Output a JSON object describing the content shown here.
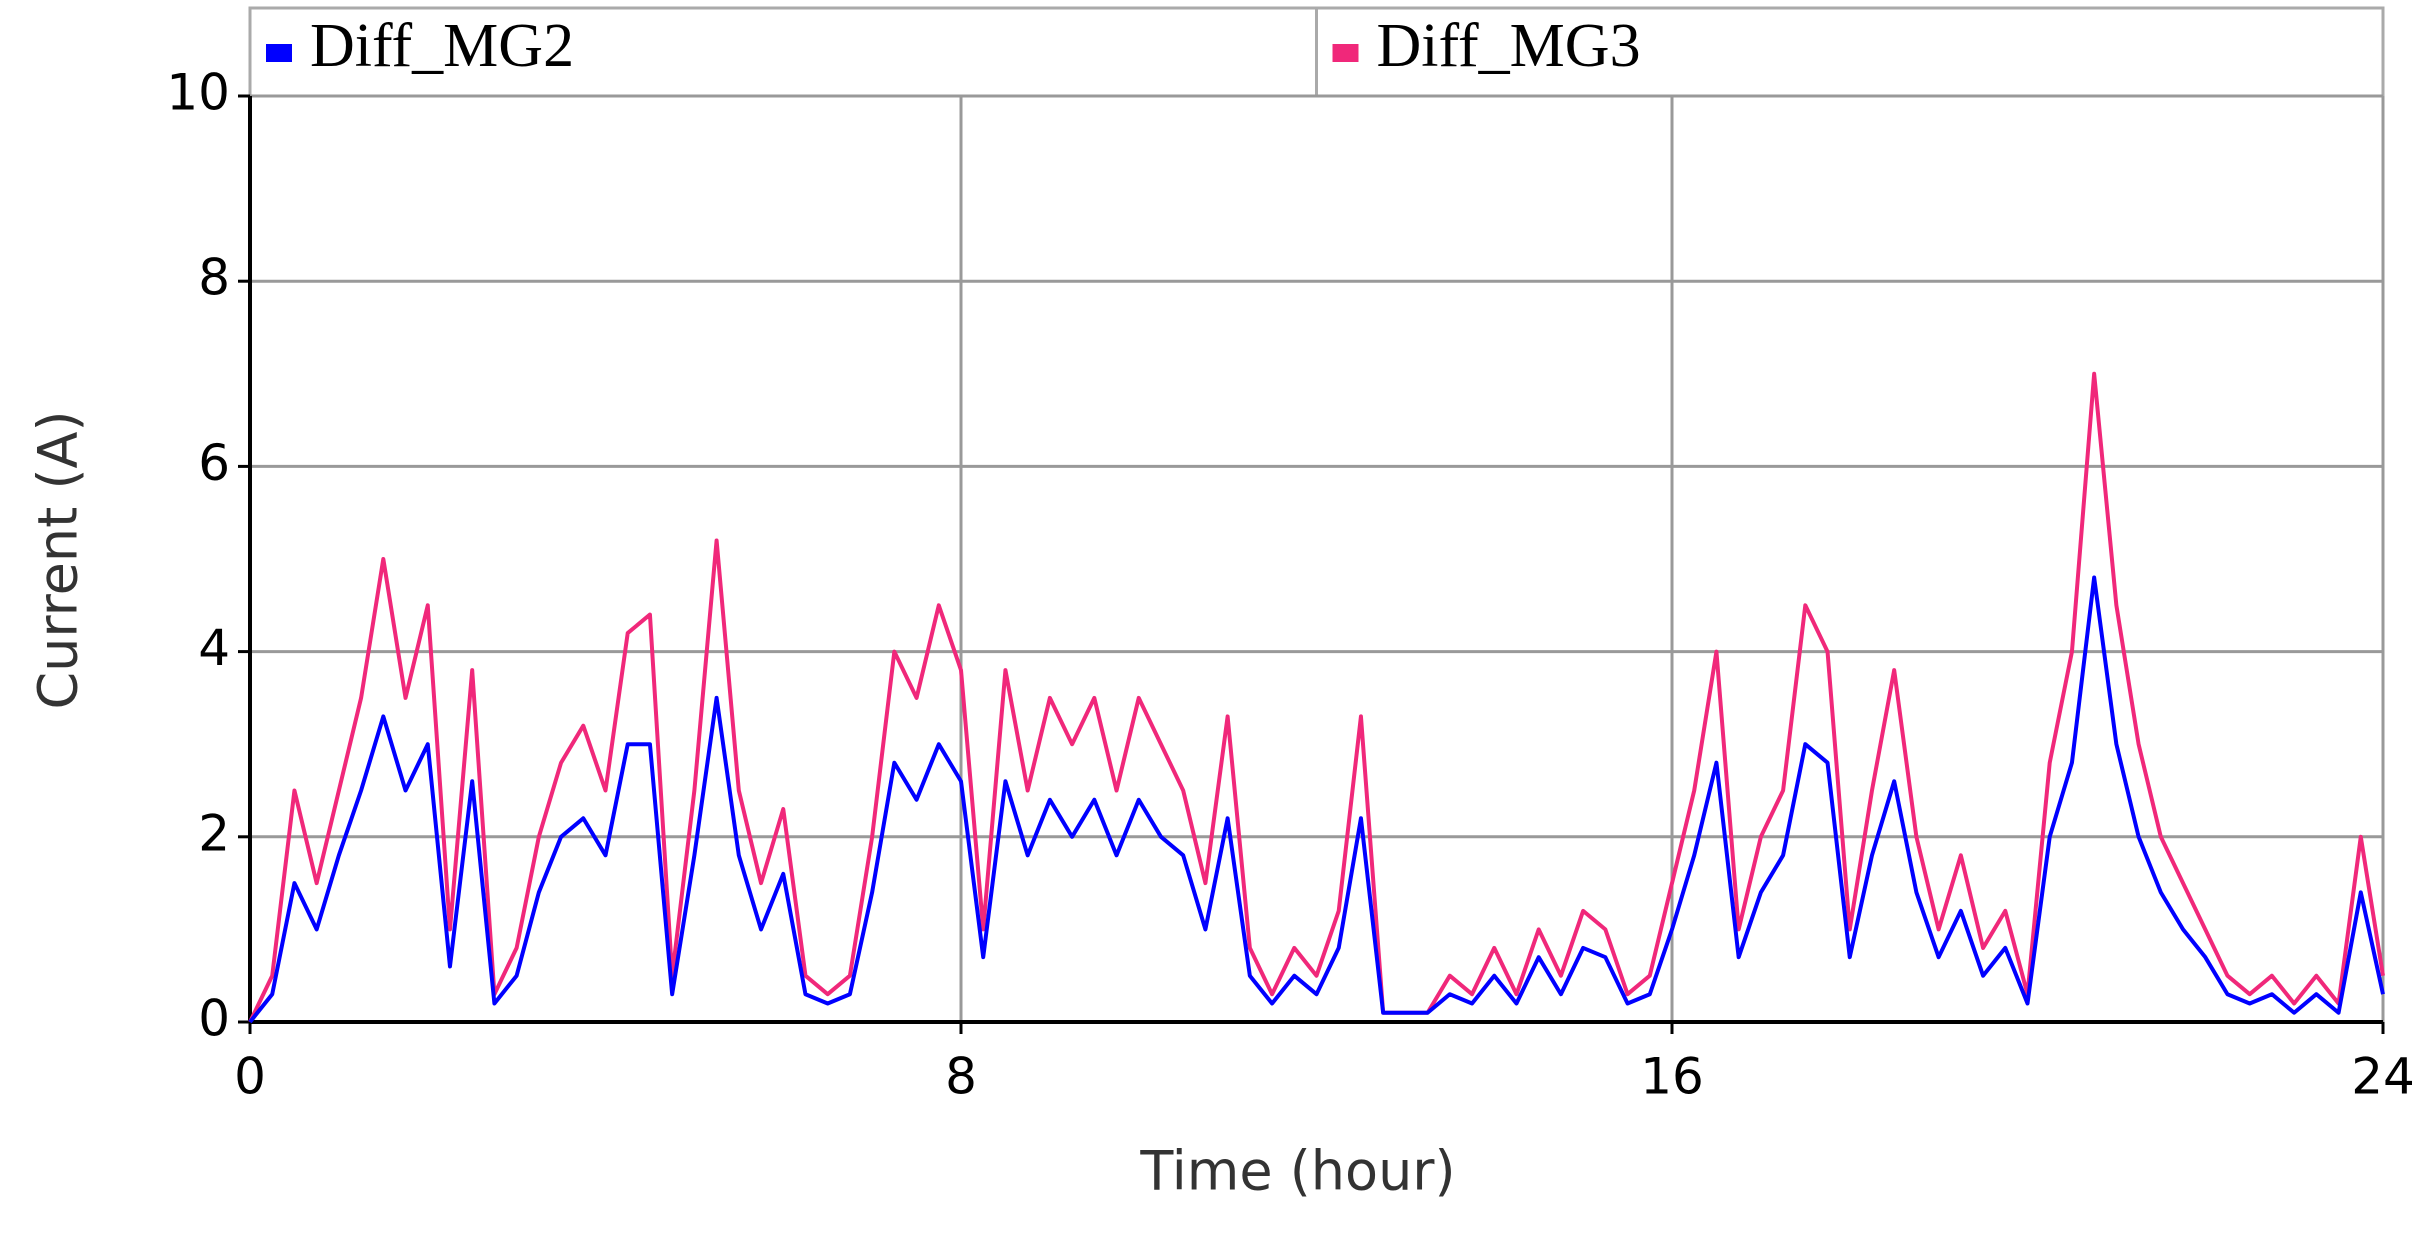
{
  "chart_data": {
    "type": "line",
    "xlabel": "Time (hour)",
    "ylabel": "Current (A)",
    "x": [
      0,
      0.25,
      0.5,
      0.75,
      1,
      1.25,
      1.5,
      1.75,
      2,
      2.25,
      2.5,
      2.75,
      3,
      3.25,
      3.5,
      3.75,
      4,
      4.25,
      4.5,
      4.75,
      5,
      5.25,
      5.5,
      5.75,
      6,
      6.25,
      6.5,
      6.75,
      7,
      7.25,
      7.5,
      7.75,
      8,
      8.25,
      8.5,
      8.75,
      9,
      9.25,
      9.5,
      9.75,
      10,
      10.25,
      10.5,
      10.75,
      11,
      11.25,
      11.5,
      11.75,
      12,
      12.25,
      12.5,
      12.75,
      13,
      13.25,
      13.5,
      13.75,
      14,
      14.25,
      14.5,
      14.75,
      15,
      15.25,
      15.5,
      15.75,
      16,
      16.25,
      16.5,
      16.75,
      17,
      17.25,
      17.5,
      17.75,
      18,
      18.25,
      18.5,
      18.75,
      19,
      19.25,
      19.5,
      19.75,
      20,
      20.25,
      20.5,
      20.75,
      21,
      21.25,
      21.5,
      21.75,
      22,
      22.25,
      22.5,
      22.75,
      23,
      23.25,
      23.5,
      23.75,
      24
    ],
    "series": [
      {
        "name": "Diff_MG2",
        "color": "#0000ff",
        "values": [
          0,
          0.3,
          1.5,
          1.0,
          1.8,
          2.5,
          3.3,
          2.5,
          3.0,
          0.6,
          2.6,
          0.2,
          0.5,
          1.4,
          2.0,
          2.2,
          1.8,
          3.0,
          3.0,
          0.3,
          1.8,
          3.5,
          1.8,
          1.0,
          1.6,
          0.3,
          0.2,
          0.3,
          1.4,
          2.8,
          2.4,
          3.0,
          2.6,
          0.7,
          2.6,
          1.8,
          2.4,
          2.0,
          2.4,
          1.8,
          2.4,
          2.0,
          1.8,
          1.0,
          2.2,
          0.5,
          0.2,
          0.5,
          0.3,
          0.8,
          2.2,
          0.1,
          0.1,
          0.1,
          0.3,
          0.2,
          0.5,
          0.2,
          0.7,
          0.3,
          0.8,
          0.7,
          0.2,
          0.3,
          1.0,
          1.8,
          2.8,
          0.7,
          1.4,
          1.8,
          3.0,
          2.8,
          0.7,
          1.8,
          2.6,
          1.4,
          0.7,
          1.2,
          0.5,
          0.8,
          0.2,
          2.0,
          2.8,
          4.8,
          3.0,
          2.0,
          1.4,
          1.0,
          0.7,
          0.3,
          0.2,
          0.3,
          0.1,
          0.3,
          0.1,
          1.4,
          0.3
        ]
      },
      {
        "name": "Diff_MG3",
        "color": "#f0287a",
        "values": [
          0,
          0.5,
          2.5,
          1.5,
          2.5,
          3.5,
          5.0,
          3.5,
          4.5,
          1.0,
          3.8,
          0.3,
          0.8,
          2.0,
          2.8,
          3.2,
          2.5,
          4.2,
          4.4,
          0.5,
          2.5,
          5.2,
          2.5,
          1.5,
          2.3,
          0.5,
          0.3,
          0.5,
          2.0,
          4.0,
          3.5,
          4.5,
          3.8,
          1.0,
          3.8,
          2.5,
          3.5,
          3.0,
          3.5,
          2.5,
          3.5,
          3.0,
          2.5,
          1.5,
          3.3,
          0.8,
          0.3,
          0.8,
          0.5,
          1.2,
          3.3,
          0.1,
          0.1,
          0.1,
          0.5,
          0.3,
          0.8,
          0.3,
          1.0,
          0.5,
          1.2,
          1.0,
          0.3,
          0.5,
          1.5,
          2.5,
          4.0,
          1.0,
          2.0,
          2.5,
          4.5,
          4.0,
          1.0,
          2.5,
          3.8,
          2.0,
          1.0,
          1.8,
          0.8,
          1.2,
          0.3,
          2.8,
          4.0,
          7.0,
          4.5,
          3.0,
          2.0,
          1.5,
          1.0,
          0.5,
          0.3,
          0.5,
          0.2,
          0.5,
          0.2,
          2.0,
          0.5
        ]
      }
    ],
    "xlim": [
      0,
      24
    ],
    "xticks": [
      0,
      8,
      16,
      24
    ],
    "ylim": [
      0,
      10
    ],
    "yticks": [
      0,
      2,
      4,
      6,
      8,
      10
    ],
    "grid": true,
    "legend": "top"
  }
}
